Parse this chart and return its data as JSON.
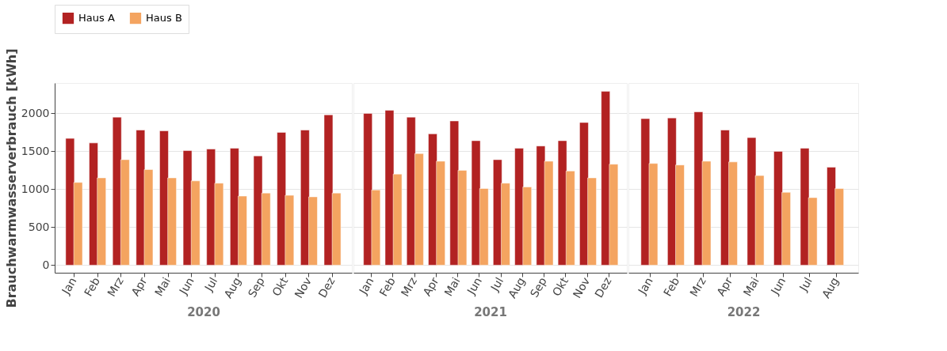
{
  "chart_data": [
    {
      "type": "bar",
      "xlabel": "2020",
      "ylabel": "Brauchwarmwasserverbrauch [kWh]",
      "categories": [
        "Jan",
        "Feb",
        "Mrz",
        "Apr",
        "Mai",
        "Jun",
        "Jul",
        "Aug",
        "Sep",
        "Okt",
        "Nov",
        "Dez"
      ],
      "ylim": [
        -100,
        2400
      ],
      "yticks": [
        0,
        500,
        1000,
        1500,
        2000
      ],
      "grid": "y",
      "legend": "top",
      "series": [
        {
          "name": "Haus A",
          "color": "#b22222",
          "values": [
            1670,
            1610,
            1950,
            1780,
            1770,
            1510,
            1530,
            1540,
            1440,
            1750,
            1780,
            1980
          ]
        },
        {
          "name": "Haus B",
          "color": "#f4a460",
          "values": [
            1090,
            1150,
            1390,
            1260,
            1150,
            1110,
            1080,
            910,
            950,
            920,
            900,
            950
          ]
        }
      ]
    },
    {
      "type": "bar",
      "xlabel": "2021",
      "categories": [
        "Jan",
        "Feb",
        "Mrz",
        "Apr",
        "Mai",
        "Jun",
        "Jul",
        "Aug",
        "Sep",
        "Okt",
        "Nov",
        "Dez"
      ],
      "ylim": [
        -100,
        2400
      ],
      "yticks": [
        0,
        500,
        1000,
        1500,
        2000
      ],
      "grid": "y",
      "legend": "top",
      "tick_labels": "x",
      "series": [
        {
          "name": "Haus A",
          "color": "#b22222",
          "values": [
            2000,
            2040,
            1950,
            1730,
            1900,
            1640,
            1390,
            1540,
            1570,
            1640,
            1880,
            2290
          ]
        },
        {
          "name": "Haus B",
          "color": "#f4a460",
          "values": [
            990,
            1200,
            1470,
            1370,
            1250,
            1010,
            1080,
            1030,
            1370,
            1240,
            1150,
            1330
          ]
        }
      ]
    },
    {
      "type": "bar",
      "xlabel": "2022",
      "categories": [
        "Jan",
        "Feb",
        "Mrz",
        "Apr",
        "Mai",
        "Jun",
        "Jul",
        "Aug"
      ],
      "ylim": [
        -100,
        2400
      ],
      "yticks": [
        0,
        500,
        1000,
        1500,
        2000
      ],
      "grid": "y",
      "legend": "top",
      "tick_labels": "x",
      "series": [
        {
          "name": "Haus A",
          "color": "#b22222",
          "values": [
            1930,
            1940,
            2020,
            1780,
            1680,
            1500,
            1540,
            1290
          ]
        },
        {
          "name": "Haus B",
          "color": "#f4a460",
          "values": [
            1340,
            1320,
            1370,
            1360,
            1180,
            960,
            890,
            1010
          ]
        }
      ]
    }
  ]
}
